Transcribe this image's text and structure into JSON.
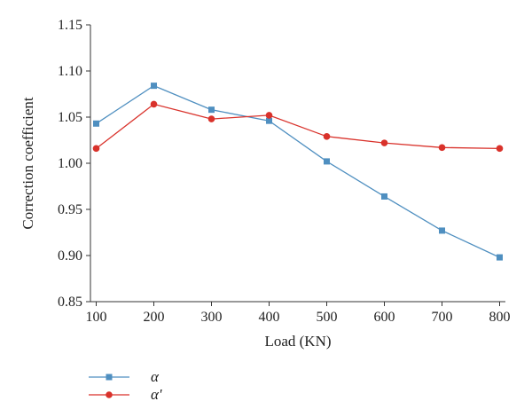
{
  "chart_data": {
    "type": "line",
    "x": [
      100,
      200,
      300,
      400,
      500,
      600,
      700,
      800
    ],
    "xticks": [
      "100",
      "200",
      "300",
      "400",
      "500",
      "600",
      "700",
      "800"
    ],
    "yticks": [
      "0.85",
      "0.90",
      "0.95",
      "1.00",
      "1.05",
      "1.10",
      "1.15"
    ],
    "xlim": [
      90,
      810
    ],
    "ylim": [
      0.85,
      1.15
    ],
    "xlabel": "Load (KN)",
    "ylabel": "Correction coefficient",
    "grid": false,
    "legend_position": "bottom-left",
    "series": [
      {
        "name": "α",
        "values": [
          1.043,
          1.084,
          1.058,
          1.046,
          1.002,
          0.964,
          0.927,
          0.898
        ],
        "color": "#4f8fc0",
        "marker": "square"
      },
      {
        "name": "α'",
        "values": [
          1.016,
          1.064,
          1.048,
          1.052,
          1.029,
          1.022,
          1.017,
          1.016
        ],
        "color": "#d9322b",
        "marker": "circle"
      }
    ]
  }
}
